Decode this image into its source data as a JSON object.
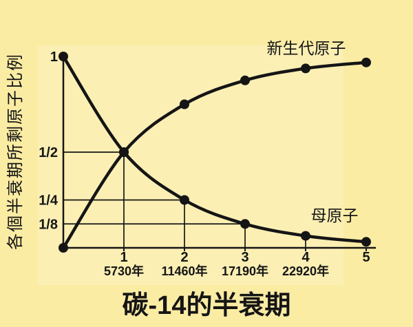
{
  "page": {
    "title": "碳-14的半衰期"
  },
  "colors": {
    "background": "#fbeca4",
    "ink": "#151515",
    "chart_backdrop": "rgba(255,255,255,0.18)"
  },
  "chart_data": {
    "type": "line",
    "title": "碳-14的半衰期",
    "xlabel": "",
    "ylabel": "各個半衰期所剩原子比例",
    "xlim": [
      0,
      5
    ],
    "ylim": [
      0,
      1
    ],
    "grid": "step guide lines from axis to points at (1,1/2), (2,1/4), (3,1/8) and vertical drop at (4,1/16)",
    "legend_position": "inline annotations next to curves",
    "x_ticks": [
      {
        "value": 1,
        "label": "1",
        "year": "5730年"
      },
      {
        "value": 2,
        "label": "2",
        "year": "11460年"
      },
      {
        "value": 3,
        "label": "3",
        "year": "17190年"
      },
      {
        "value": 4,
        "label": "4",
        "year": "22920年"
      },
      {
        "value": 5,
        "label": "5",
        "year": ""
      }
    ],
    "y_ticks": [
      {
        "value": 1,
        "label": "1"
      },
      {
        "value": 0.5,
        "label": "1/2"
      },
      {
        "value": 0.25,
        "label": "1/4"
      },
      {
        "value": 0.125,
        "label": "1/8"
      }
    ],
    "guides": [
      {
        "t": 1,
        "v": 0.5,
        "horizontal": true,
        "vertical": true
      },
      {
        "t": 2,
        "v": 0.25,
        "horizontal": true,
        "vertical": true
      },
      {
        "t": 3,
        "v": 0.125,
        "horizontal": true,
        "vertical": true
      },
      {
        "t": 4,
        "v": 0.0625,
        "horizontal": false,
        "vertical": true
      }
    ],
    "series": [
      {
        "name": "母原子",
        "x": [
          0,
          1,
          2,
          3,
          4,
          5
        ],
        "values": [
          1,
          0.5,
          0.25,
          0.125,
          0.0625,
          0.03125
        ]
      },
      {
        "name": "新生代原子",
        "x": [
          0,
          1,
          2,
          3,
          4,
          5
        ],
        "values": [
          0,
          0.5,
          0.75,
          0.875,
          0.9375,
          0.96875
        ]
      }
    ]
  }
}
